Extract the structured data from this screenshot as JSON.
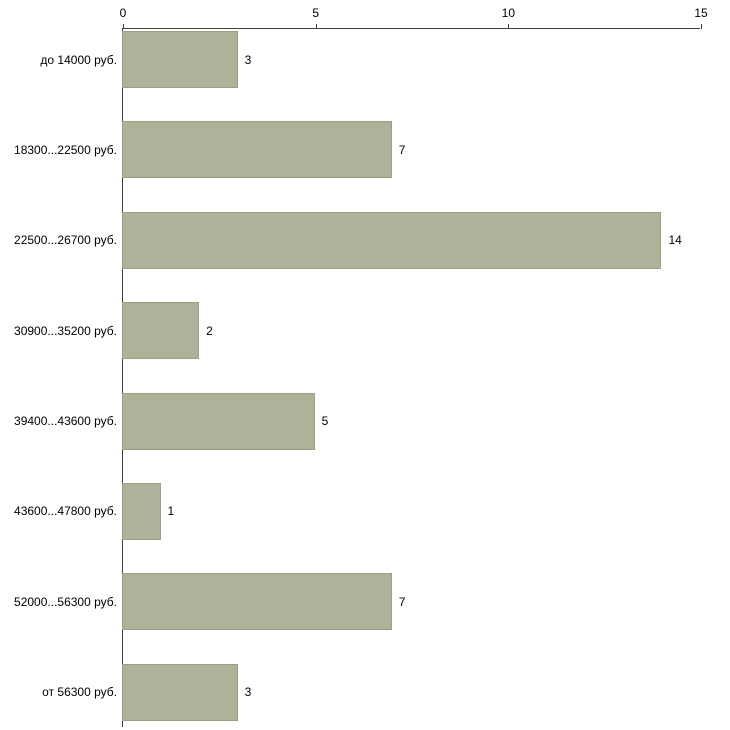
{
  "chart_data": {
    "type": "bar",
    "orientation": "horizontal",
    "title": "",
    "xlabel": "",
    "ylabel": "",
    "categories": [
      "до 14000 руб.",
      "18300...22500 руб.",
      "22500...26700 руб.",
      "30900...35200 руб.",
      "39400...43600 руб.",
      "43600...47800 руб.",
      "52000...56300 руб.",
      "от 56300 руб."
    ],
    "values": [
      3,
      7,
      14,
      2,
      5,
      1,
      7,
      3
    ],
    "value_labels": [
      "3",
      "7",
      "14",
      "2",
      "5",
      "1",
      "7",
      "3"
    ],
    "xlim": [
      0,
      15
    ],
    "x_ticks": [
      "0",
      "5",
      "10",
      "15"
    ],
    "x_axis_position": "top",
    "grid": false,
    "legend": false,
    "bar_color": "#acb399",
    "bar_border_color": "#99a087",
    "axis_color": "#3f3f3f",
    "text_color": "#000000",
    "background_color": "#ffffff"
  }
}
